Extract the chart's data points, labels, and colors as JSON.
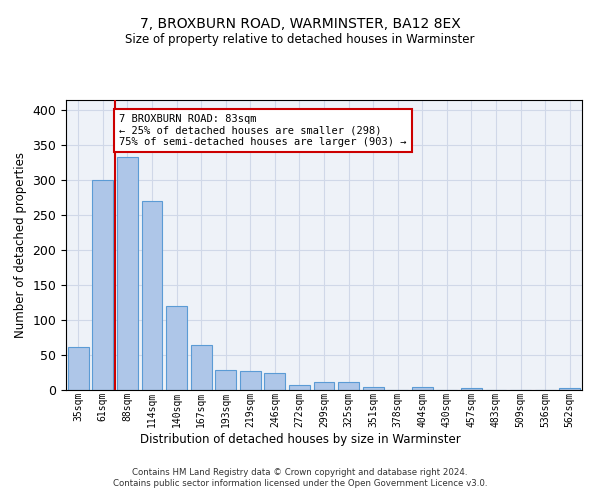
{
  "title": "7, BROXBURN ROAD, WARMINSTER, BA12 8EX",
  "subtitle": "Size of property relative to detached houses in Warminster",
  "xlabel": "Distribution of detached houses by size in Warminster",
  "ylabel": "Number of detached properties",
  "bar_color": "#aec6e8",
  "bar_edge_color": "#5b9bd5",
  "grid_color": "#d0d8e8",
  "background_color": "#eef2f8",
  "annotation_text": "7 BROXBURN ROAD: 83sqm\n← 25% of detached houses are smaller (298)\n75% of semi-detached houses are larger (903) →",
  "annotation_box_color": "#ffffff",
  "annotation_box_edge": "#cc0000",
  "red_line_color": "#cc0000",
  "categories": [
    "35sqm",
    "61sqm",
    "88sqm",
    "114sqm",
    "140sqm",
    "167sqm",
    "193sqm",
    "219sqm",
    "246sqm",
    "272sqm",
    "299sqm",
    "325sqm",
    "351sqm",
    "378sqm",
    "404sqm",
    "430sqm",
    "457sqm",
    "483sqm",
    "509sqm",
    "536sqm",
    "562sqm"
  ],
  "values": [
    62,
    300,
    333,
    270,
    120,
    65,
    29,
    27,
    25,
    7,
    11,
    11,
    5,
    0,
    4,
    0,
    3,
    0,
    0,
    0,
    3
  ],
  "ylim": [
    0,
    415
  ],
  "yticks": [
    0,
    50,
    100,
    150,
    200,
    250,
    300,
    350,
    400
  ],
  "footnote": "Contains HM Land Registry data © Crown copyright and database right 2024.\nContains public sector information licensed under the Open Government Licence v3.0."
}
